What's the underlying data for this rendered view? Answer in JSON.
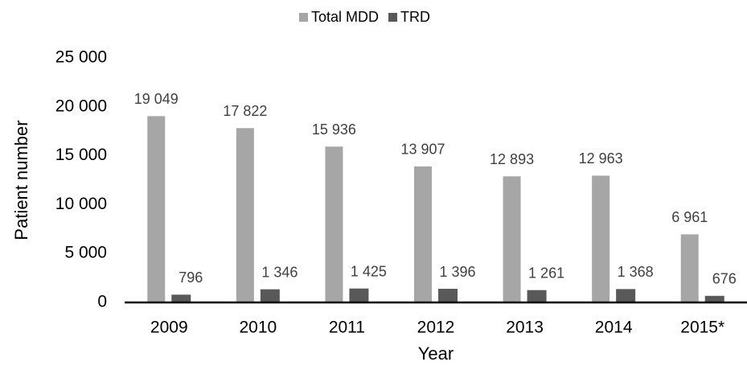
{
  "chart_data": {
    "type": "bar",
    "y_label": "Patient number",
    "x_label": "Year",
    "categories": [
      "2009",
      "2010",
      "2011",
      "2012",
      "2013",
      "2014",
      "2015*"
    ],
    "series": [
      {
        "name": "Total MDD",
        "color": "#a6a6a6",
        "values": [
          19049,
          17822,
          15936,
          13907,
          12893,
          12963,
          6961
        ],
        "value_labels": [
          "19 049",
          "17 822",
          "15 936",
          "13 907",
          "12 893",
          "12 963",
          "6 961"
        ]
      },
      {
        "name": "TRD",
        "color": "#595959",
        "values": [
          796,
          1346,
          1425,
          1396,
          1261,
          1368,
          676
        ],
        "value_labels": [
          "796",
          "1 346",
          "1 425",
          "1 396",
          "1 261",
          "1 368",
          "676"
        ]
      }
    ],
    "ylim": [
      0,
      25000
    ],
    "yticks": [
      0,
      {
        "value": 5000,
        "label": "5 000"
      },
      {
        "value": 10000,
        "label": "10 000"
      },
      {
        "value": 15000,
        "label": "15 000"
      },
      {
        "value": 20000,
        "label": "20 000"
      },
      {
        "value": 25000,
        "label": "25 000"
      }
    ],
    "grid": false,
    "legend": "top"
  }
}
